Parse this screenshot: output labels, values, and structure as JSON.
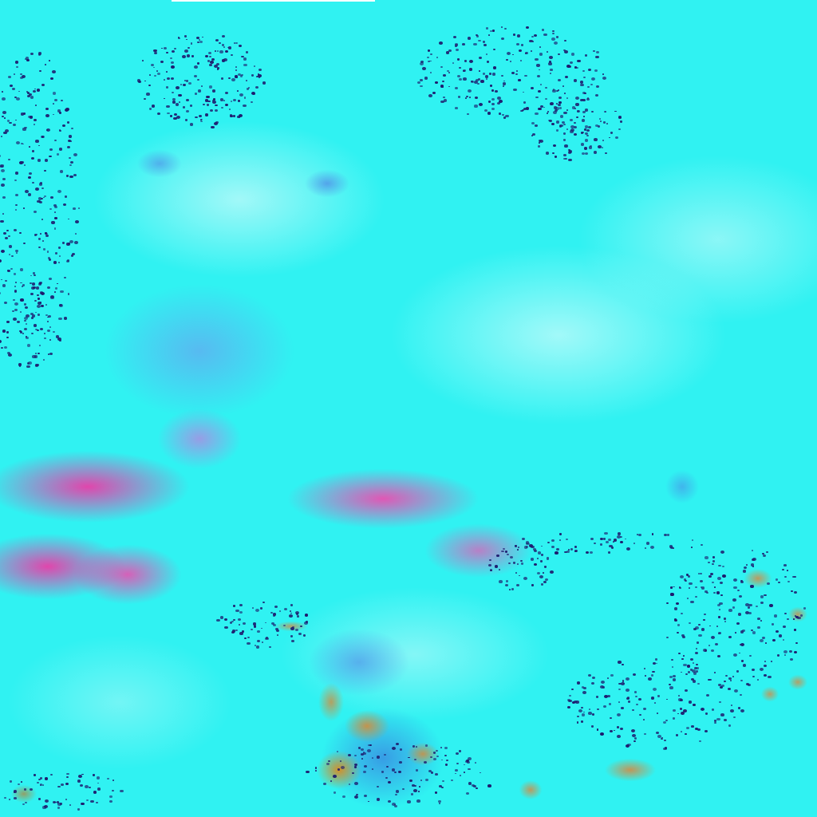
{
  "image": {
    "subject": "false-color-satellite-imagery",
    "colors": {
      "background": "#30f2f2",
      "cloud_pink": "#ff3ca0",
      "cloud_blue": "#5080e6",
      "land_orange": "#d28c3c",
      "speck_dark": "#1e1a6e"
    }
  }
}
